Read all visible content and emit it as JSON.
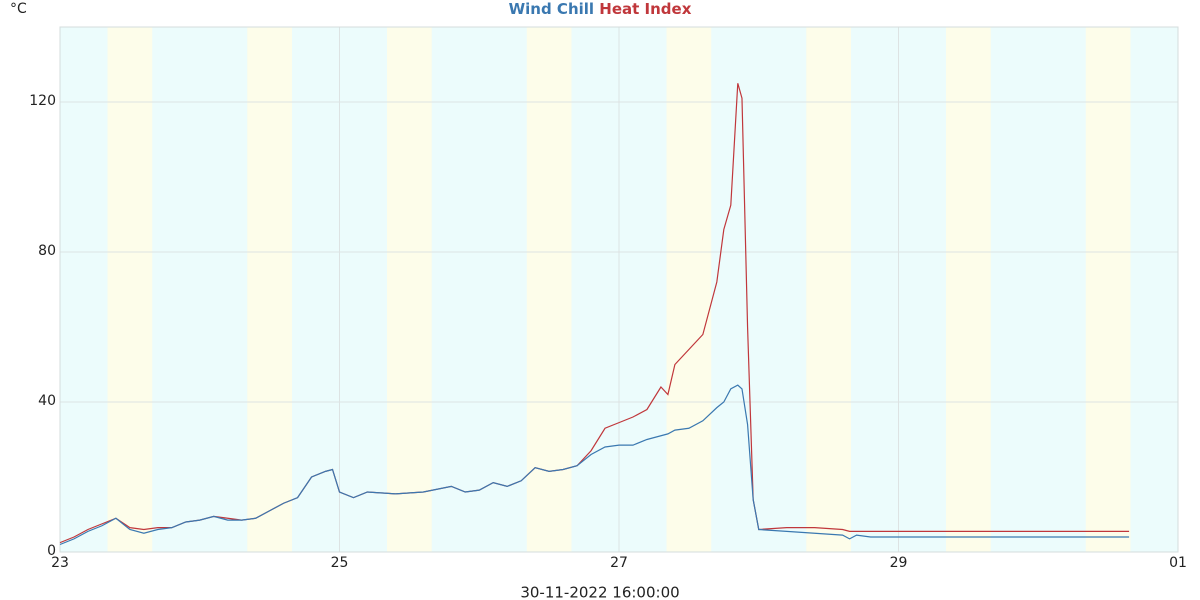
{
  "chart_data": {
    "type": "line",
    "y_label": "°C",
    "x_label": "30-11-2022 16:00:00",
    "xlim": [
      23,
      31
    ],
    "xticks": [
      23,
      25,
      27,
      29,
      {
        "value": 31,
        "label": "01"
      }
    ],
    "ylim": [
      0,
      140
    ],
    "yticks": [
      0,
      40,
      80,
      120
    ],
    "grid": true,
    "day_bands": [
      [
        23.34,
        23.66
      ],
      [
        24.34,
        24.66
      ],
      [
        25.34,
        25.66
      ],
      [
        26.34,
        26.66
      ],
      [
        27.34,
        27.66
      ],
      [
        28.34,
        28.66
      ],
      [
        29.34,
        29.66
      ],
      [
        30.34,
        30.66
      ]
    ],
    "day_band_color": "#fdfdea",
    "night_band_color": "#ecfcfc",
    "x": [
      23,
      23.1,
      23.2,
      23.3,
      23.4,
      23.5,
      23.6,
      23.7,
      23.8,
      23.9,
      24,
      24.1,
      24.2,
      24.3,
      24.4,
      24.5,
      24.6,
      24.7,
      24.8,
      24.9,
      24.95,
      25,
      25.1,
      25.2,
      25.4,
      25.6,
      25.8,
      25.9,
      26,
      26.1,
      26.2,
      26.3,
      26.4,
      26.5,
      26.6,
      26.7,
      26.8,
      26.9,
      27,
      27.1,
      27.2,
      27.3,
      27.35,
      27.4,
      27.5,
      27.6,
      27.7,
      27.75,
      27.8,
      27.85,
      27.88,
      27.92,
      27.96,
      28,
      28.2,
      28.4,
      28.6,
      28.65,
      28.7,
      28.8,
      29,
      29.5,
      30,
      30.5,
      30.65
    ],
    "series": [
      {
        "name": "Wind Chill",
        "color": "#3a78b0",
        "values": [
          2,
          3.5,
          5.5,
          7,
          9,
          6,
          5,
          6,
          6.5,
          8,
          8.5,
          9.5,
          8.5,
          8.5,
          9,
          11,
          13,
          14.5,
          20,
          21.5,
          22,
          16,
          14.5,
          16,
          15.5,
          16,
          17.5,
          16,
          16.5,
          18.5,
          17.5,
          19,
          22.5,
          21.5,
          22,
          23,
          26,
          28,
          28.5,
          28.5,
          30,
          31,
          31.5,
          32.5,
          33,
          35,
          38.5,
          40,
          43.5,
          44.5,
          43.5,
          34,
          14,
          6,
          5.5,
          5,
          4.5,
          3.5,
          4.5,
          4,
          4,
          4,
          4,
          4,
          4
        ]
      },
      {
        "name": "Heat Index",
        "color": "#c0373b",
        "values": [
          2.5,
          4,
          6,
          7.5,
          9,
          6.5,
          6,
          6.5,
          6.5,
          8,
          8.5,
          9.5,
          9,
          8.5,
          9,
          11,
          13,
          14.5,
          20,
          21.5,
          22,
          16,
          14.5,
          16,
          15.5,
          16,
          17.5,
          16,
          16.5,
          18.5,
          17.5,
          19,
          22.5,
          21.5,
          22,
          23,
          27,
          33,
          34.5,
          36,
          38,
          44,
          42,
          50,
          54,
          58,
          72,
          86,
          92.5,
          125,
          121,
          60,
          14,
          6,
          6.5,
          6.5,
          6,
          5.5,
          5.5,
          5.5,
          5.5,
          5.5,
          5.5,
          5.5,
          5.5
        ]
      }
    ]
  }
}
